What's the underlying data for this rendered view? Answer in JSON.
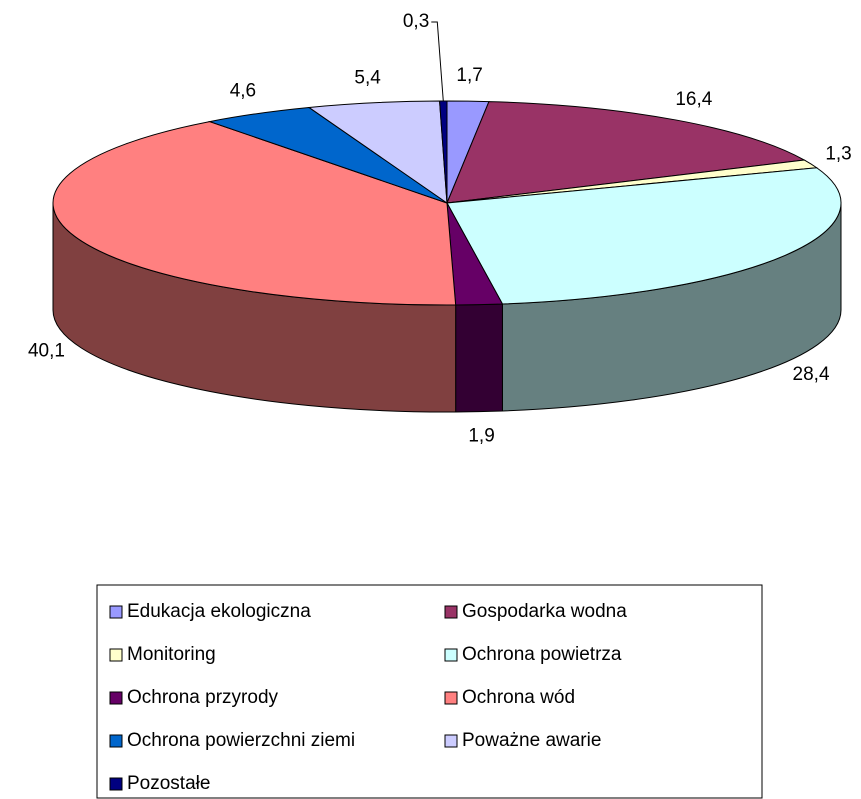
{
  "chart_data": {
    "type": "pie3d",
    "categories": [
      "Edukacja ekologiczna",
      "Gospodarka wodna",
      "Monitoring",
      "Ochrona powietrza",
      "Ochrona przyrody",
      "Ochrona wód",
      "Ochrona powierzchni ziemi",
      "Poważne awarie",
      "Pozostałe"
    ],
    "values": [
      1.7,
      16.4,
      1.3,
      28.4,
      1.9,
      40.1,
      4.6,
      5.4,
      0.3
    ],
    "value_labels": [
      "1,7",
      "16,4",
      "1,3",
      "28,4",
      "1,9",
      "40,1",
      "4,6",
      "5,4",
      "0,3"
    ],
    "colors": [
      "#9999ff",
      "#993366",
      "#ffffcc",
      "#ccffff",
      "#660066",
      "#ff8080",
      "#0066cc",
      "#ccccff",
      "#000080"
    ],
    "legend": "bottom"
  }
}
